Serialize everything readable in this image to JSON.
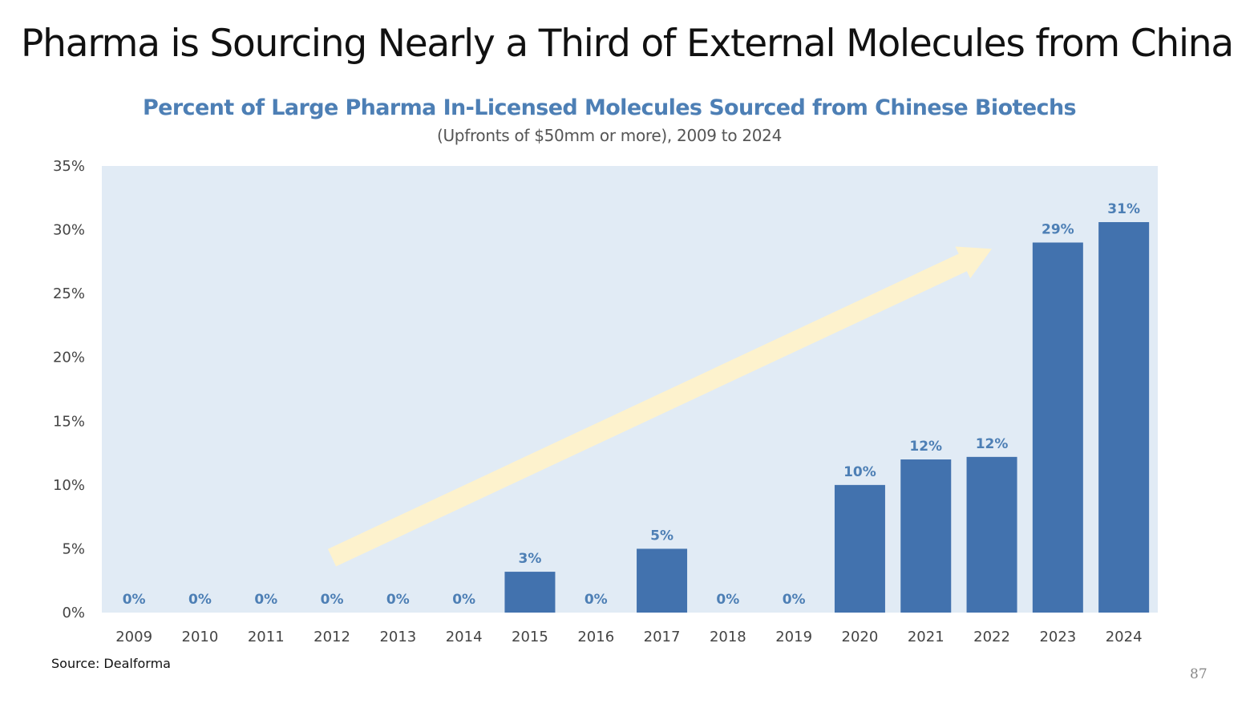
{
  "slide": {
    "title": "Pharma is Sourcing Nearly a Third of External Molecules from China",
    "source": "Source: Dealforma",
    "page_number": "87"
  },
  "colors": {
    "bar": "#4272ae",
    "plot_background": "#e1ebf5",
    "data_label": "#4d7fb5",
    "arrow": "#fdf2cd",
    "title_text": "#111111",
    "chart_title": "#4d7fb5"
  },
  "chart_data": {
    "type": "bar",
    "title": "Percent of Large Pharma In-Licensed Molecules Sourced from Chinese Biotechs",
    "subtitle": "(Upfronts of $50mm or more), 2009 to 2024",
    "categories": [
      "2009",
      "2010",
      "2011",
      "2012",
      "2013",
      "2014",
      "2015",
      "2016",
      "2017",
      "2018",
      "2019",
      "2020",
      "2021",
      "2022",
      "2023",
      "2024"
    ],
    "values": [
      0,
      0,
      0,
      0,
      0,
      0,
      3.2,
      0,
      5,
      0,
      0,
      10,
      12,
      12.2,
      29,
      30.6
    ],
    "value_labels": [
      "0%",
      "0%",
      "0%",
      "0%",
      "0%",
      "0%",
      "3%",
      "0%",
      "5%",
      "0%",
      "0%",
      "10%",
      "12%",
      "12%",
      "29%",
      "31%"
    ],
    "ylim": [
      0,
      35
    ],
    "yticks": [
      0,
      5,
      10,
      15,
      20,
      25,
      30,
      35
    ],
    "ytick_labels": [
      "0%",
      "5%",
      "10%",
      "15%",
      "20%",
      "25%",
      "30%",
      "35%"
    ],
    "grid": false,
    "legend": "none",
    "annotations": [
      {
        "type": "trend-arrow",
        "from": {
          "x": "2012",
          "y": 4.3
        },
        "to": {
          "x": "2022",
          "y": 28.5
        }
      }
    ]
  }
}
